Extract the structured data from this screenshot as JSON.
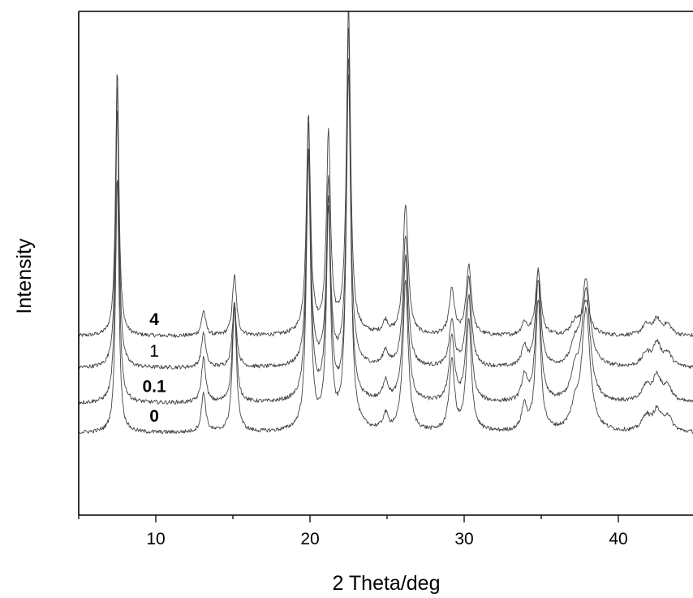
{
  "chart_data": {
    "type": "line",
    "title": "",
    "xlabel": "2 Theta/deg",
    "ylabel": "Intensity",
    "xlim": [
      5,
      45
    ],
    "ylim": [
      0,
      1
    ],
    "xticks": [
      10,
      20,
      30,
      40
    ],
    "y_tick_labels_shown": false,
    "grid": false,
    "legend": "none (series labelled inline above each trace)",
    "peak_positions_2theta": [
      7.5,
      13.1,
      15.1,
      19.9,
      21.2,
      22.5,
      24.9,
      26.2,
      29.2,
      30.3,
      33.9,
      34.8,
      37.2,
      37.9,
      41.8,
      42.5,
      43.2
    ],
    "series": [
      {
        "name": "4",
        "bold": true,
        "baseline": 0.355,
        "peaks": [
          [
            7.5,
            0.53
          ],
          [
            13.1,
            0.05
          ],
          [
            15.1,
            0.12
          ],
          [
            19.9,
            0.43
          ],
          [
            21.2,
            0.39
          ],
          [
            22.5,
            0.64
          ],
          [
            24.9,
            0.025
          ],
          [
            26.2,
            0.26
          ],
          [
            29.2,
            0.09
          ],
          [
            30.3,
            0.14
          ],
          [
            33.9,
            0.025
          ],
          [
            34.8,
            0.13
          ],
          [
            37.2,
            0.025
          ],
          [
            37.9,
            0.065
          ],
          [
            41.8,
            0.02
          ],
          [
            42.5,
            0.03
          ],
          [
            43.2,
            0.02
          ]
        ]
      },
      {
        "name": "1",
        "bold": false,
        "baseline": 0.292,
        "peaks": [
          [
            7.5,
            0.57
          ],
          [
            13.1,
            0.07
          ],
          [
            15.1,
            0.13
          ],
          [
            19.9,
            0.43
          ],
          [
            21.2,
            0.32
          ],
          [
            22.5,
            0.61
          ],
          [
            24.9,
            0.03
          ],
          [
            26.2,
            0.26
          ],
          [
            29.2,
            0.09
          ],
          [
            30.3,
            0.18
          ],
          [
            33.9,
            0.04
          ],
          [
            34.8,
            0.19
          ],
          [
            37.2,
            0.04
          ],
          [
            37.9,
            0.17
          ],
          [
            41.8,
            0.025
          ],
          [
            42.5,
            0.045
          ],
          [
            43.2,
            0.025
          ]
        ]
      },
      {
        "name": "0.1",
        "bold": true,
        "baseline": 0.222,
        "peaks": [
          [
            7.5,
            0.59
          ],
          [
            13.1,
            0.09
          ],
          [
            15.1,
            0.2
          ],
          [
            19.9,
            0.55
          ],
          [
            21.2,
            0.43
          ],
          [
            22.5,
            0.65
          ],
          [
            24.9,
            0.04
          ],
          [
            26.2,
            0.29
          ],
          [
            29.2,
            0.13
          ],
          [
            30.3,
            0.21
          ],
          [
            33.9,
            0.05
          ],
          [
            34.8,
            0.24
          ],
          [
            37.2,
            0.05
          ],
          [
            37.9,
            0.22
          ],
          [
            41.8,
            0.03
          ],
          [
            42.5,
            0.05
          ],
          [
            43.2,
            0.03
          ]
        ]
      },
      {
        "name": "0",
        "bold": true,
        "baseline": 0.163,
        "peaks": [
          [
            7.5,
            0.51
          ],
          [
            13.1,
            0.08
          ],
          [
            15.1,
            0.25
          ],
          [
            19.9,
            0.55
          ],
          [
            21.2,
            0.43
          ],
          [
            22.5,
            0.8
          ],
          [
            24.9,
            0.03
          ],
          [
            26.2,
            0.3
          ],
          [
            29.2,
            0.14
          ],
          [
            30.3,
            0.22
          ],
          [
            33.9,
            0.05
          ],
          [
            34.8,
            0.26
          ],
          [
            37.2,
            0.04
          ],
          [
            37.9,
            0.24
          ],
          [
            41.8,
            0.03
          ],
          [
            42.5,
            0.04
          ],
          [
            43.2,
            0.03
          ]
        ]
      }
    ]
  }
}
